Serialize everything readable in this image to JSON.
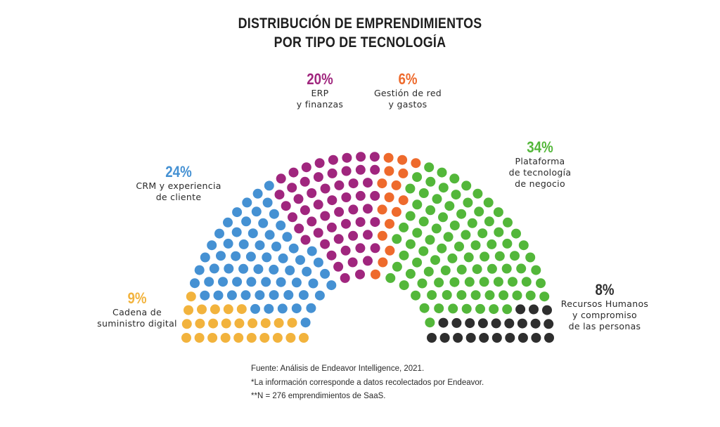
{
  "chart_data": {
    "type": "parliament",
    "title": "DISTRIBUCIÓN DE EMPRENDIMIENTOS POR TIPO DE TECNOLOGÍA",
    "title_lines": [
      "DISTRIBUCIÓN DE EMPRENDIMIENTOS",
      "POR TIPO DE TECNOLOGÍA"
    ],
    "total": 276,
    "unit": "%",
    "series": [
      {
        "name": "Cadena de suministro digital",
        "label_lines": [
          "Cadena de",
          "suministro digital"
        ],
        "percent_label": "9%",
        "value": 9,
        "color": "#F2B33D"
      },
      {
        "name": "CRM y experiencia de cliente",
        "label_lines": [
          "CRM y experiencia",
          "de cliente"
        ],
        "percent_label": "24%",
        "value": 24,
        "color": "#4591D3"
      },
      {
        "name": "ERP y finanzas",
        "label_lines": [
          "ERP",
          "y finanzas"
        ],
        "percent_label": "20%",
        "value": 20,
        "color": "#A0267E"
      },
      {
        "name": "Gestión de red y gastos",
        "label_lines": [
          "Gestión de red",
          "y gastos"
        ],
        "percent_label": "6%",
        "value": 6,
        "color": "#EE6A2C"
      },
      {
        "name": "Plataforma de tecnología de negocio",
        "label_lines": [
          "Plataforma",
          "de tecnología",
          "de negocio"
        ],
        "percent_label": "34%",
        "value": 34,
        "color": "#53B73A"
      },
      {
        "name": "Recursos Humanos y compromiso de las personas",
        "label_lines": [
          "Recursos Humanos",
          "y compromiso",
          "de las personas"
        ],
        "percent_label": "8%",
        "value": 8,
        "color": "#2E2E2E"
      }
    ],
    "notes": [
      "Fuente: Análisis de Endeavor Intelligence, 2021.",
      "*La información corresponde a datos recolectados por Endeavor.",
      "**N = 276 emprendimientos de SaaS."
    ]
  }
}
